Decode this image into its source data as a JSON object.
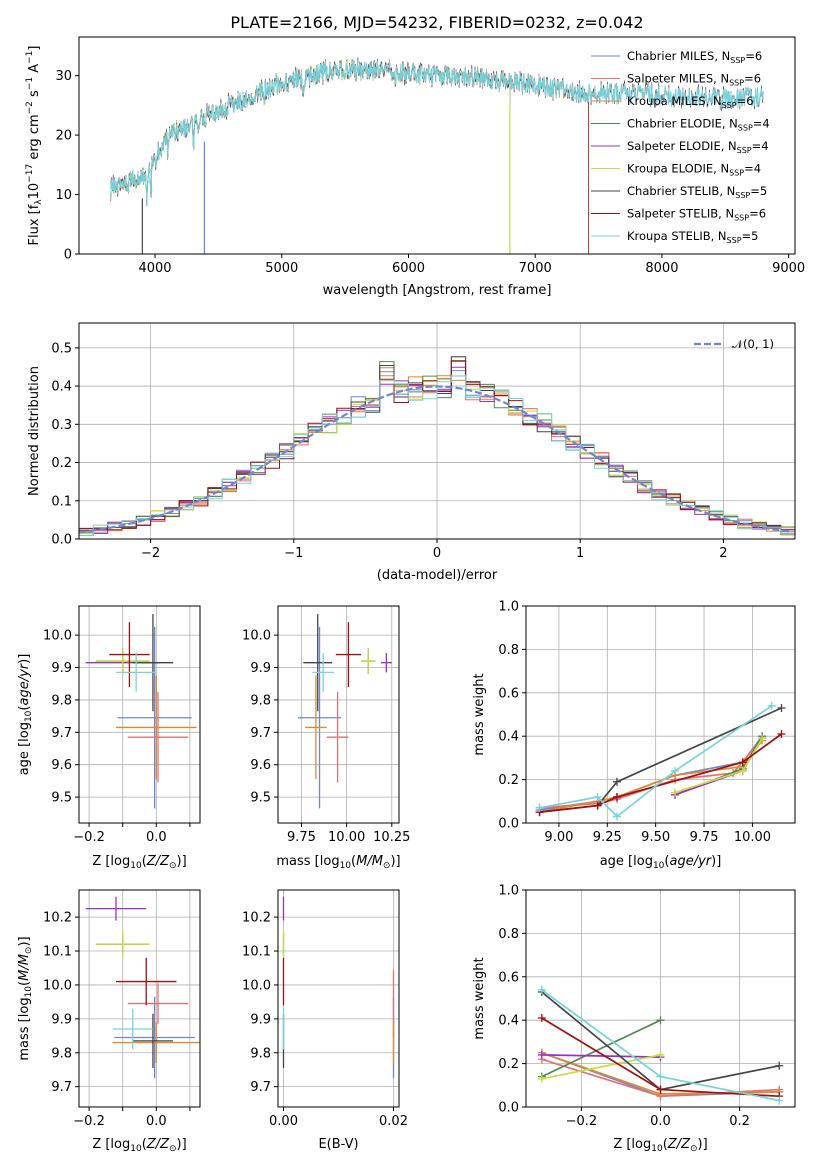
{
  "figure": {
    "title": "PLATE=2166, MJD=54232, FIBERID=0232, z=0.042"
  },
  "colors": {
    "Chabrier MILES": "#6f86d6",
    "Salpeter MILES": "#e76f6f",
    "Kroupa MILES": "#e08a2c",
    "Chabrier ELODIE": "#4f8a4f",
    "Salpeter ELODIE": "#9b30c7",
    "Kroupa ELODIE": "#c8dc3c",
    "Chabrier STELIB": "#454545",
    "Salpeter STELIB": "#a01010",
    "Kroupa STELIB": "#74d4dc",
    "normal": "#6f86d6"
  },
  "chart_data": [
    {
      "id": "spectrum",
      "type": "line",
      "title": "PLATE=2166, MJD=54232, FIBERID=0232, z=0.042",
      "xlabel": "wavelength [Angstrom, rest frame]",
      "ylabel": "Flux [f_λ 10^-17 erg cm^-2 s^-1 A^-1]",
      "xlim": [
        3400,
        9050
      ],
      "ylim": [
        0,
        36.5
      ],
      "xticks": [
        4000,
        5000,
        6000,
        7000,
        8000,
        9000
      ],
      "yticks": [
        0,
        10,
        20,
        30
      ],
      "continuum_x": [
        3650,
        3800,
        3950,
        4100,
        4300,
        4500,
        4700,
        4900,
        5100,
        5300,
        5500,
        5800,
        6000,
        6300,
        6600,
        7000,
        7400,
        7800,
        8200,
        8500,
        8800
      ],
      "continuum_y": [
        11,
        12,
        14,
        20,
        22,
        24,
        26,
        28,
        29.5,
        30.5,
        31,
        31,
        30.5,
        30,
        29.5,
        28.5,
        27,
        27,
        26.5,
        26,
        26.5
      ],
      "legend_position": "upper right",
      "series": [
        {
          "name": "Chabrier MILES",
          "nssp": "6"
        },
        {
          "name": "Salpeter MILES",
          "nssp": "6"
        },
        {
          "name": "Kroupa MILES",
          "nssp": "6"
        },
        {
          "name": "Chabrier ELODIE",
          "nssp": "4"
        },
        {
          "name": "Salpeter ELODIE",
          "nssp": "4"
        },
        {
          "name": "Kroupa ELODIE",
          "nssp": "4"
        },
        {
          "name": "Chabrier STELIB",
          "nssp": "5"
        },
        {
          "name": "Salpeter STELIB",
          "nssp": "6"
        },
        {
          "name": "Kroupa STELIB",
          "nssp": "5"
        }
      ]
    },
    {
      "id": "residuals",
      "type": "line",
      "xlabel": "(data-model)/error",
      "ylabel": "Normed distribution",
      "xlim": [
        -2.5,
        2.5
      ],
      "ylim": [
        0,
        0.565
      ],
      "xticks": [
        -2,
        -1,
        0,
        1,
        2
      ],
      "yticks": [
        0.0,
        0.1,
        0.2,
        0.3,
        0.4,
        0.5
      ],
      "grid": true,
      "legend": "𝒩(0, 1)",
      "legend_position": "upper right"
    },
    {
      "id": "age_vs_Z",
      "type": "scatter",
      "xlabel": "Z [log10(Z/Z⊙)]",
      "ylabel": "age  [log10(age/yr)]",
      "xlim": [
        -0.23,
        0.13
      ],
      "ylim": [
        9.42,
        10.09
      ],
      "xticks": [
        -0.2,
        -0.1,
        0.0,
        0.1
      ],
      "xticklabels": [
        "−0.2",
        "",
        "0.0",
        ""
      ],
      "yticks": [
        9.5,
        9.6,
        9.7,
        9.8,
        9.9,
        10.0
      ],
      "grid": true,
      "points": [
        {
          "series": "Chabrier MILES",
          "x": -0.005,
          "xerr": 0.11,
          "y": 9.745,
          "yerr": 0.28
        },
        {
          "series": "Salpeter MILES",
          "x": 0.005,
          "xerr": 0.09,
          "y": 9.685,
          "yerr": 0.14
        },
        {
          "series": "Kroupa MILES",
          "x": 0.0,
          "xerr": 0.12,
          "y": 9.715,
          "yerr": 0.16
        },
        {
          "series": "Chabrier ELODIE",
          "x": -0.1,
          "xerr": 0.08,
          "y": 9.92,
          "yerr": 0.04
        },
        {
          "series": "Salpeter ELODIE",
          "x": -0.1,
          "xerr": 0.11,
          "y": 9.915,
          "yerr": 0.03
        },
        {
          "series": "Kroupa ELODIE",
          "x": -0.1,
          "xerr": 0.08,
          "y": 9.92,
          "yerr": 0.04
        },
        {
          "series": "Chabrier STELIB",
          "x": -0.01,
          "xerr": 0.06,
          "y": 9.915,
          "yerr": 0.15
        },
        {
          "series": "Salpeter STELIB",
          "x": -0.08,
          "xerr": 0.06,
          "y": 9.94,
          "yerr": 0.1
        },
        {
          "series": "Kroupa STELIB",
          "x": -0.06,
          "xerr": 0.06,
          "y": 9.885,
          "yerr": 0.06
        }
      ]
    },
    {
      "id": "age_vs_mass",
      "type": "scatter",
      "xlabel": "mass [log10(M/M⊙)]",
      "xlim": [
        9.62,
        10.29
      ],
      "ylim": [
        9.42,
        10.09
      ],
      "xticks": [
        9.75,
        10.0,
        10.25
      ],
      "yticks": [
        9.5,
        9.6,
        9.7,
        9.8,
        9.9,
        10.0
      ],
      "grid": true,
      "points": [
        {
          "series": "Chabrier MILES",
          "x": 9.85,
          "xerr": 0.12,
          "y": 9.745,
          "yerr": 0.28
        },
        {
          "series": "Salpeter MILES",
          "x": 9.95,
          "xerr": 0.06,
          "y": 9.685,
          "yerr": 0.14
        },
        {
          "series": "Kroupa MILES",
          "x": 9.83,
          "xerr": 0.06,
          "y": 9.715,
          "yerr": 0.16
        },
        {
          "series": "Chabrier ELODIE",
          "x": 10.12,
          "xerr": 0.04,
          "y": 9.92,
          "yerr": 0.04
        },
        {
          "series": "Salpeter ELODIE",
          "x": 10.22,
          "xerr": 0.03,
          "y": 9.915,
          "yerr": 0.03
        },
        {
          "series": "Kroupa ELODIE",
          "x": 10.12,
          "xerr": 0.04,
          "y": 9.92,
          "yerr": 0.04
        },
        {
          "series": "Chabrier STELIB",
          "x": 9.84,
          "xerr": 0.08,
          "y": 9.915,
          "yerr": 0.15
        },
        {
          "series": "Salpeter STELIB",
          "x": 10.01,
          "xerr": 0.07,
          "y": 9.94,
          "yerr": 0.1
        },
        {
          "series": "Kroupa STELIB",
          "x": 9.87,
          "xerr": 0.06,
          "y": 9.885,
          "yerr": 0.06
        }
      ]
    },
    {
      "id": "weight_vs_age",
      "type": "line",
      "xlabel": "age  [log10(age/yr)]",
      "ylabel": "mass weight",
      "xlim": [
        8.83,
        10.22
      ],
      "ylim": [
        0,
        1.0
      ],
      "xticks": [
        9.0,
        9.25,
        9.5,
        9.75,
        10.0
      ],
      "yticks": [
        0.0,
        0.2,
        0.4,
        0.6,
        0.8,
        1.0
      ],
      "grid": true,
      "series": [
        {
          "name": "Chabrier MILES",
          "x": [
            8.9,
            9.2,
            9.3,
            9.6,
            9.95,
            10.05
          ],
          "y": [
            0.06,
            0.1,
            0.12,
            0.22,
            0.28,
            0.4
          ]
        },
        {
          "name": "Salpeter MILES",
          "x": [
            8.9,
            9.2,
            9.3,
            9.6,
            9.9,
            10.05
          ],
          "y": [
            0.07,
            0.09,
            0.11,
            0.2,
            0.23,
            0.39
          ]
        },
        {
          "name": "Kroupa MILES",
          "x": [
            8.9,
            9.2,
            9.3,
            9.6,
            9.95,
            10.05
          ],
          "y": [
            0.05,
            0.1,
            0.12,
            0.22,
            0.26,
            0.38
          ]
        },
        {
          "name": "Chabrier ELODIE",
          "x": [
            9.6,
            9.95,
            10.05
          ],
          "y": [
            0.13,
            0.25,
            0.4
          ]
        },
        {
          "name": "Salpeter ELODIE",
          "x": [
            9.6,
            9.95,
            10.05
          ],
          "y": [
            0.13,
            0.24,
            0.39
          ]
        },
        {
          "name": "Kroupa ELODIE",
          "x": [
            9.6,
            9.95,
            10.05
          ],
          "y": [
            0.14,
            0.24,
            0.39
          ]
        },
        {
          "name": "Chabrier STELIB",
          "x": [
            8.9,
            9.2,
            9.3,
            10.15
          ],
          "y": [
            0.05,
            0.08,
            0.19,
            0.53
          ]
        },
        {
          "name": "Salpeter STELIB",
          "x": [
            8.9,
            9.2,
            9.3,
            9.95,
            10.15
          ],
          "y": [
            0.05,
            0.08,
            0.12,
            0.28,
            0.41
          ]
        },
        {
          "name": "Kroupa STELIB",
          "x": [
            8.9,
            9.2,
            9.3,
            9.6,
            10.1
          ],
          "y": [
            0.07,
            0.12,
            0.03,
            0.24,
            0.54
          ]
        }
      ]
    },
    {
      "id": "mass_vs_Z",
      "type": "scatter",
      "xlabel": "Z [log10(Z/Z⊙)]",
      "ylabel": "mass [log10(M/M⊙)]",
      "xlim": [
        -0.23,
        0.13
      ],
      "ylim": [
        9.64,
        10.28
      ],
      "xticks": [
        -0.2,
        -0.1,
        0.0,
        0.1
      ],
      "xticklabels": [
        "−0.2",
        "",
        "0.0",
        ""
      ],
      "yticks": [
        9.7,
        9.8,
        9.9,
        10.0,
        10.1,
        10.2
      ],
      "grid": true,
      "points": [
        {
          "series": "Chabrier MILES",
          "x": -0.005,
          "xerr": 0.12,
          "y": 9.845,
          "yerr": 0.12
        },
        {
          "series": "Salpeter MILES",
          "x": 0.005,
          "xerr": 0.09,
          "y": 9.945,
          "yerr": 0.06
        },
        {
          "series": "Kroupa MILES",
          "x": 0.0,
          "xerr": 0.13,
          "y": 9.83,
          "yerr": 0.06
        },
        {
          "series": "Chabrier ELODIE",
          "x": -0.1,
          "xerr": 0.08,
          "y": 10.12,
          "yerr": 0.03
        },
        {
          "series": "Salpeter ELODIE",
          "x": -0.12,
          "xerr": 0.09,
          "y": 10.225,
          "yerr": 0.035
        },
        {
          "series": "Kroupa ELODIE",
          "x": -0.1,
          "xerr": 0.08,
          "y": 10.12,
          "yerr": 0.04
        },
        {
          "series": "Chabrier STELIB",
          "x": -0.01,
          "xerr": 0.06,
          "y": 9.835,
          "yerr": 0.08
        },
        {
          "series": "Salpeter STELIB",
          "x": -0.03,
          "xerr": 0.09,
          "y": 10.01,
          "yerr": 0.07
        },
        {
          "series": "Kroupa STELIB",
          "x": -0.07,
          "xerr": 0.06,
          "y": 9.87,
          "yerr": 0.06
        }
      ]
    },
    {
      "id": "mass_vs_ebv",
      "type": "scatter",
      "xlabel": "E(B-V)",
      "xlim": [
        -0.001,
        0.021
      ],
      "ylim": [
        9.64,
        10.28
      ],
      "xticks": [
        0.0,
        0.02
      ],
      "xticklabels": [
        "0.00",
        "0.02"
      ],
      "yticks": [
        9.7,
        9.8,
        9.9,
        10.0,
        10.1,
        10.2
      ],
      "grid": true,
      "points": [
        {
          "series": "Chabrier MILES",
          "x": 0.02,
          "y": 9.845,
          "yerr": 0.12
        },
        {
          "series": "Salpeter MILES",
          "x": 0.02,
          "y": 9.945,
          "yerr": 0.1
        },
        {
          "series": "Kroupa MILES",
          "x": 0.02,
          "y": 9.83,
          "yerr": 0.06
        },
        {
          "series": "Chabrier ELODIE",
          "x": 0.0,
          "y": 10.12,
          "yerr": 0.03
        },
        {
          "series": "Salpeter ELODIE",
          "x": 0.0,
          "y": 10.225,
          "yerr": 0.035
        },
        {
          "series": "Kroupa ELODIE",
          "x": 0.0,
          "y": 10.12,
          "yerr": 0.04
        },
        {
          "series": "Chabrier STELIB",
          "x": 0.0,
          "y": 9.835,
          "yerr": 0.08
        },
        {
          "series": "Salpeter STELIB",
          "x": 0.0,
          "y": 10.01,
          "yerr": 0.07
        },
        {
          "series": "Kroupa STELIB",
          "x": 0.0,
          "y": 9.87,
          "yerr": 0.06
        }
      ]
    },
    {
      "id": "weight_vs_Z",
      "type": "line",
      "xlabel": "Z [log10(Z/Z⊙)]",
      "ylabel": "mass weight",
      "xlim": [
        -0.34,
        0.34
      ],
      "ylim": [
        0,
        1.0
      ],
      "xticks": [
        -0.2,
        0.0,
        0.2
      ],
      "xticklabels": [
        "−0.2",
        "0.0",
        "0.2"
      ],
      "yticks": [
        0.0,
        0.2,
        0.4,
        0.6,
        0.8,
        1.0
      ],
      "grid": true,
      "series": [
        {
          "name": "Chabrier MILES",
          "x": [
            -0.3,
            0.0,
            0.3
          ],
          "y": [
            0.25,
            0.05,
            0.07
          ]
        },
        {
          "name": "Salpeter MILES",
          "x": [
            -0.3,
            0.0,
            0.3
          ],
          "y": [
            0.22,
            0.05,
            0.08
          ]
        },
        {
          "name": "Kroupa MILES",
          "x": [
            -0.3,
            0.0,
            0.3
          ],
          "y": [
            0.25,
            0.06,
            0.07
          ]
        },
        {
          "name": "Chabrier ELODIE",
          "x": [
            -0.3,
            0.0
          ],
          "y": [
            0.14,
            0.4
          ]
        },
        {
          "name": "Salpeter ELODIE",
          "x": [
            -0.3,
            0.0
          ],
          "y": [
            0.24,
            0.23
          ]
        },
        {
          "name": "Kroupa ELODIE",
          "x": [
            -0.3,
            0.0
          ],
          "y": [
            0.13,
            0.24
          ]
        },
        {
          "name": "Chabrier STELIB",
          "x": [
            -0.3,
            0.0,
            0.3
          ],
          "y": [
            0.53,
            0.08,
            0.19
          ]
        },
        {
          "name": "Salpeter STELIB",
          "x": [
            -0.3,
            0.0,
            0.3
          ],
          "y": [
            0.41,
            0.08,
            0.05
          ]
        },
        {
          "name": "Kroupa STELIB",
          "x": [
            -0.3,
            0.0,
            0.3
          ],
          "y": [
            0.54,
            0.14,
            0.03
          ]
        }
      ]
    }
  ]
}
